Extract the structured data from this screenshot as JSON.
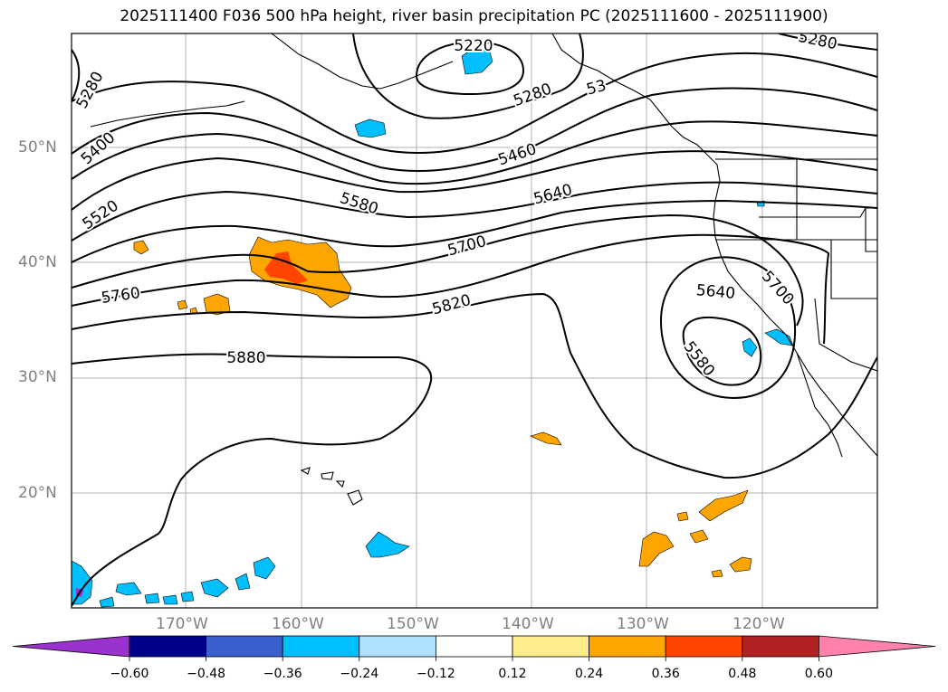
{
  "title": "2025111400 F036 500 hPa height, river basin precipitation PC (2025111600 - 2025111900)",
  "lat_labels": [
    "50°N",
    "40°N",
    "30°N",
    "20°N"
  ],
  "lon_labels": [
    "170°W",
    "160°W",
    "150°W",
    "140°W",
    "130°W",
    "120°W"
  ],
  "contour_labels": [
    {
      "text": "5220"
    },
    {
      "text": "5280"
    },
    {
      "text": "5280"
    },
    {
      "text": "5280"
    },
    {
      "text": "53"
    },
    {
      "text": "5400"
    },
    {
      "text": "5460"
    },
    {
      "text": "5520"
    },
    {
      "text": "5580"
    },
    {
      "text": "5640"
    },
    {
      "text": "5700"
    },
    {
      "text": "5760"
    },
    {
      "text": "5820"
    },
    {
      "text": "5880"
    },
    {
      "text": "5640"
    },
    {
      "text": "5700"
    },
    {
      "text": "5580"
    }
  ],
  "colorbar": {
    "ticks": [
      "−0.60",
      "−0.48",
      "−0.36",
      "−0.24",
      "−0.12",
      "0.12",
      "0.24",
      "0.36",
      "0.48",
      "0.60"
    ],
    "colors": [
      "#9a32cd",
      "#00008b",
      "#3a5fcd",
      "#00bfff",
      "#b0e2ff",
      "#ffffff",
      "#ffec8b",
      "#ffa500",
      "#ff4500",
      "#b22222",
      "#ff82ab"
    ]
  }
}
